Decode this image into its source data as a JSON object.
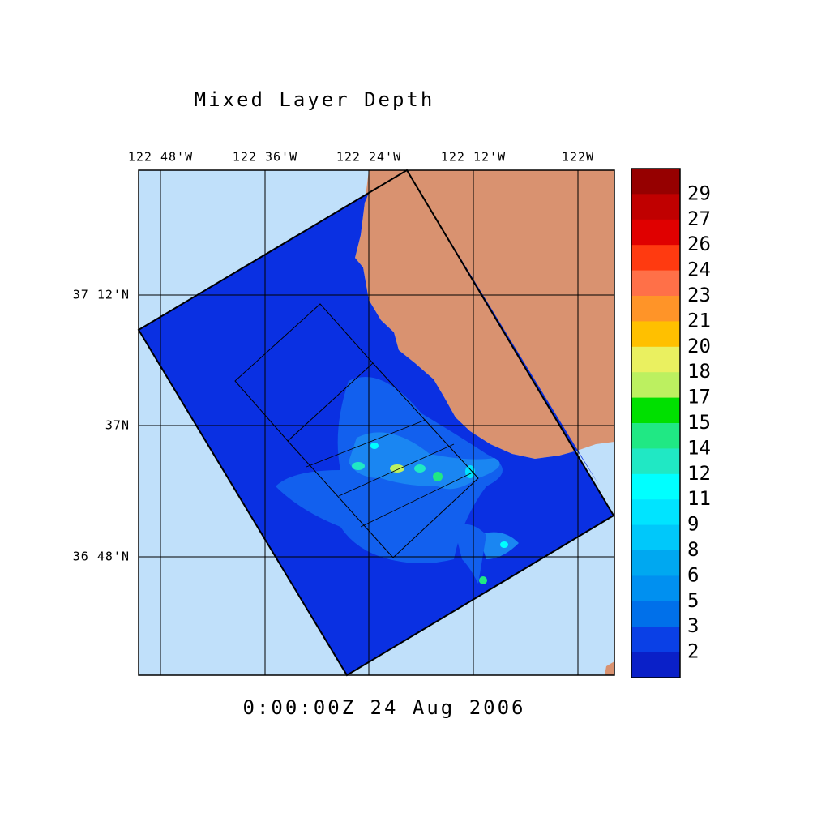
{
  "title": "Mixed Layer Depth",
  "lon_labels": [
    "122 48'W",
    "122 36'W",
    "122 24'W",
    "122 12'W",
    "122W"
  ],
  "lat_labels": [
    "37 12'N",
    "37N",
    "36 48'N"
  ],
  "timestamp": "0:00:00Z  24 Aug 2006",
  "colorbar": {
    "levels": [
      29,
      27,
      26,
      24,
      23,
      21,
      20,
      18,
      17,
      15,
      14,
      12,
      11,
      9,
      8,
      6,
      5,
      3,
      2
    ],
    "colors": [
      "#960000",
      "#c00000",
      "#e00000",
      "#ff3a10",
      "#ff7048",
      "#ff9428",
      "#ffc000",
      "#eaf060",
      "#bcf060",
      "#00e000",
      "#20e884",
      "#20e8c4",
      "#00ffff",
      "#00e4ff",
      "#00c8fa",
      "#00a8f0",
      "#0090f0",
      "#0070ea",
      "#0a40e6",
      "#0a20c8"
    ]
  }
}
